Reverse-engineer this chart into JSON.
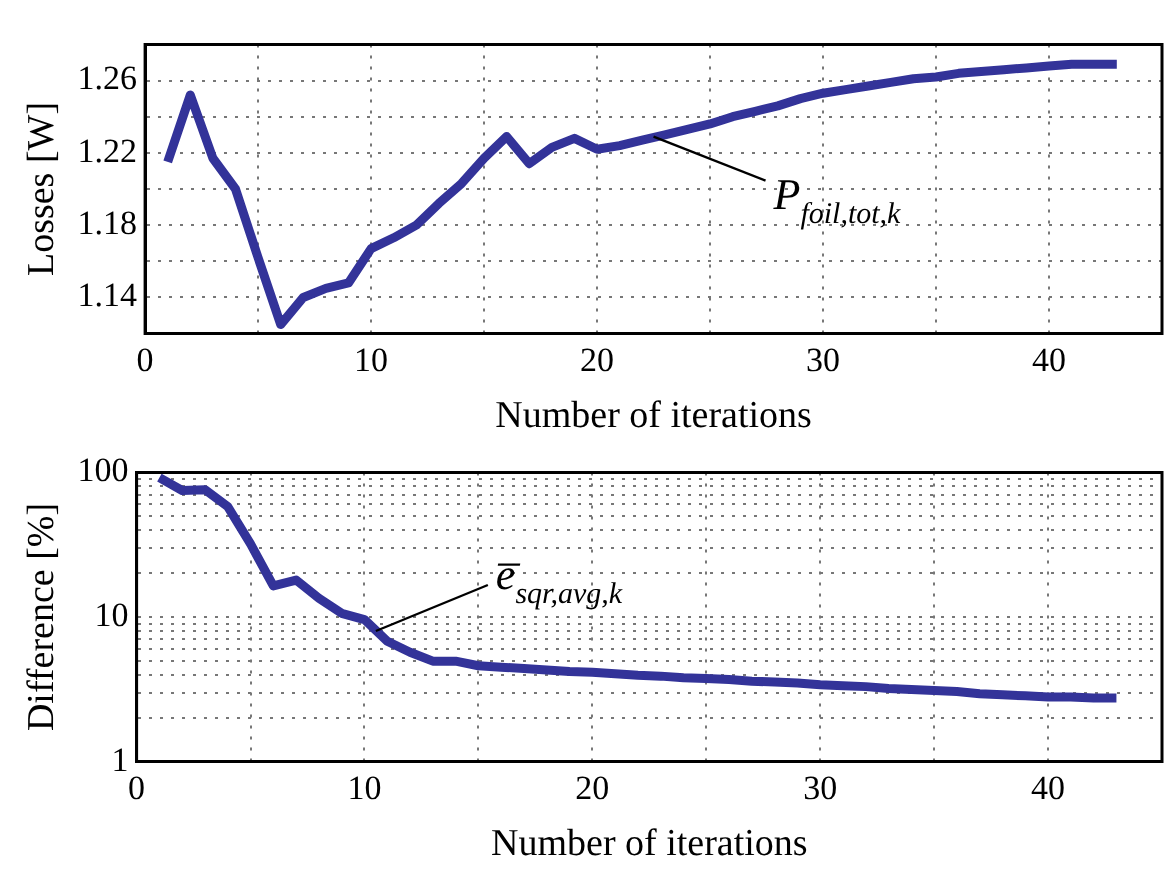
{
  "chart_data": [
    {
      "type": "line",
      "xlabel": "Number of iterations",
      "ylabel": "Losses [W]",
      "x": [
        1,
        2,
        3,
        4,
        5,
        6,
        7,
        8,
        9,
        10,
        11,
        12,
        13,
        14,
        15,
        16,
        17,
        18,
        19,
        20,
        21,
        22,
        23,
        24,
        25,
        26,
        27,
        28,
        29,
        30,
        31,
        32,
        33,
        34,
        35,
        36,
        37,
        38,
        39,
        40,
        41,
        42,
        43
      ],
      "series": [
        {
          "color": "#333399",
          "values": [
            1.215,
            1.252,
            1.217,
            1.2,
            1.162,
            1.125,
            1.14,
            1.145,
            1.148,
            1.167,
            1.173,
            1.18,
            1.192,
            1.203,
            1.217,
            1.229,
            1.214,
            1.223,
            1.228,
            1.222,
            1.224,
            1.227,
            1.23,
            1.233,
            1.236,
            1.24,
            1.243,
            1.246,
            1.25,
            1.253,
            1.255,
            1.257,
            1.259,
            1.261,
            1.262,
            1.264,
            1.265,
            1.266,
            1.267,
            1.268,
            1.269,
            1.269,
            1.269
          ]
        }
      ],
      "xlim": [
        0,
        45
      ],
      "ylim": [
        1.12,
        1.28
      ],
      "xticks": [
        0,
        {
          "value": 5,
          "label": null
        },
        10,
        {
          "value": 15,
          "label": null
        },
        20,
        {
          "value": 25,
          "label": null
        },
        30,
        {
          "value": 35,
          "label": null
        },
        40
      ],
      "yticks": [
        {
          "value": 1.12,
          "label": null
        },
        1.14,
        {
          "value": 1.16,
          "label": null
        },
        1.18,
        {
          "value": 1.2,
          "label": null
        },
        1.22,
        {
          "value": 1.24,
          "label": null
        },
        1.26
      ],
      "grid": true,
      "marker": "none",
      "line_style": "solid",
      "annotations": [
        {
          "text": "P$_{foil,tot,k}$",
          "x": 22.5,
          "y": 1.229
        }
      ]
    },
    {
      "type": "line",
      "xlabel": "Number of iterations",
      "ylabel": "Difference [%]",
      "log": "y",
      "x": [
        1,
        2,
        3,
        4,
        5,
        6,
        7,
        8,
        9,
        10,
        11,
        12,
        13,
        14,
        15,
        16,
        17,
        18,
        19,
        20,
        21,
        22,
        23,
        24,
        25,
        26,
        27,
        28,
        29,
        30,
        31,
        32,
        33,
        34,
        35,
        36,
        37,
        38,
        39,
        40,
        41,
        42,
        43
      ],
      "series": [
        {
          "color": "#333399",
          "values": [
            92,
            75,
            76,
            58,
            32,
            16.4,
            18,
            13.5,
            10.6,
            9.6,
            6.8,
            5.7,
            4.95,
            4.95,
            4.6,
            4.5,
            4.4,
            4.3,
            4.2,
            4.15,
            4.05,
            3.95,
            3.9,
            3.8,
            3.75,
            3.7,
            3.6,
            3.55,
            3.5,
            3.4,
            3.35,
            3.3,
            3.2,
            3.15,
            3.1,
            3.05,
            2.95,
            2.9,
            2.85,
            2.8,
            2.8,
            2.75,
            2.75
          ]
        }
      ],
      "xlim": [
        0,
        45
      ],
      "ylim": [
        1,
        100
      ],
      "xticks": [
        0,
        {
          "value": 5,
          "label": null
        },
        10,
        {
          "value": 15,
          "label": null
        },
        20,
        {
          "value": 25,
          "label": null
        },
        30,
        {
          "value": 35,
          "label": null
        },
        40
      ],
      "yticks": [
        1,
        {
          "value": 2,
          "label": null
        },
        {
          "value": 3,
          "label": null
        },
        {
          "value": 4,
          "label": null
        },
        {
          "value": 5,
          "label": null
        },
        {
          "value": 6,
          "label": null
        },
        {
          "value": 7,
          "label": null
        },
        {
          "value": 8,
          "label": null
        },
        {
          "value": 9,
          "label": null
        },
        10,
        {
          "value": 20,
          "label": null
        },
        {
          "value": 30,
          "label": null
        },
        {
          "value": 40,
          "label": null
        },
        {
          "value": 50,
          "label": null
        },
        {
          "value": 60,
          "label": null
        },
        {
          "value": 70,
          "label": null
        },
        {
          "value": 80,
          "label": null
        },
        {
          "value": 90,
          "label": null
        },
        100
      ],
      "grid": true,
      "marker": "none",
      "line_style": "solid",
      "annotations": [
        {
          "text": "e̅$_{sqr,avg,k}$",
          "x": 10.5,
          "y": 8
        }
      ]
    }
  ]
}
